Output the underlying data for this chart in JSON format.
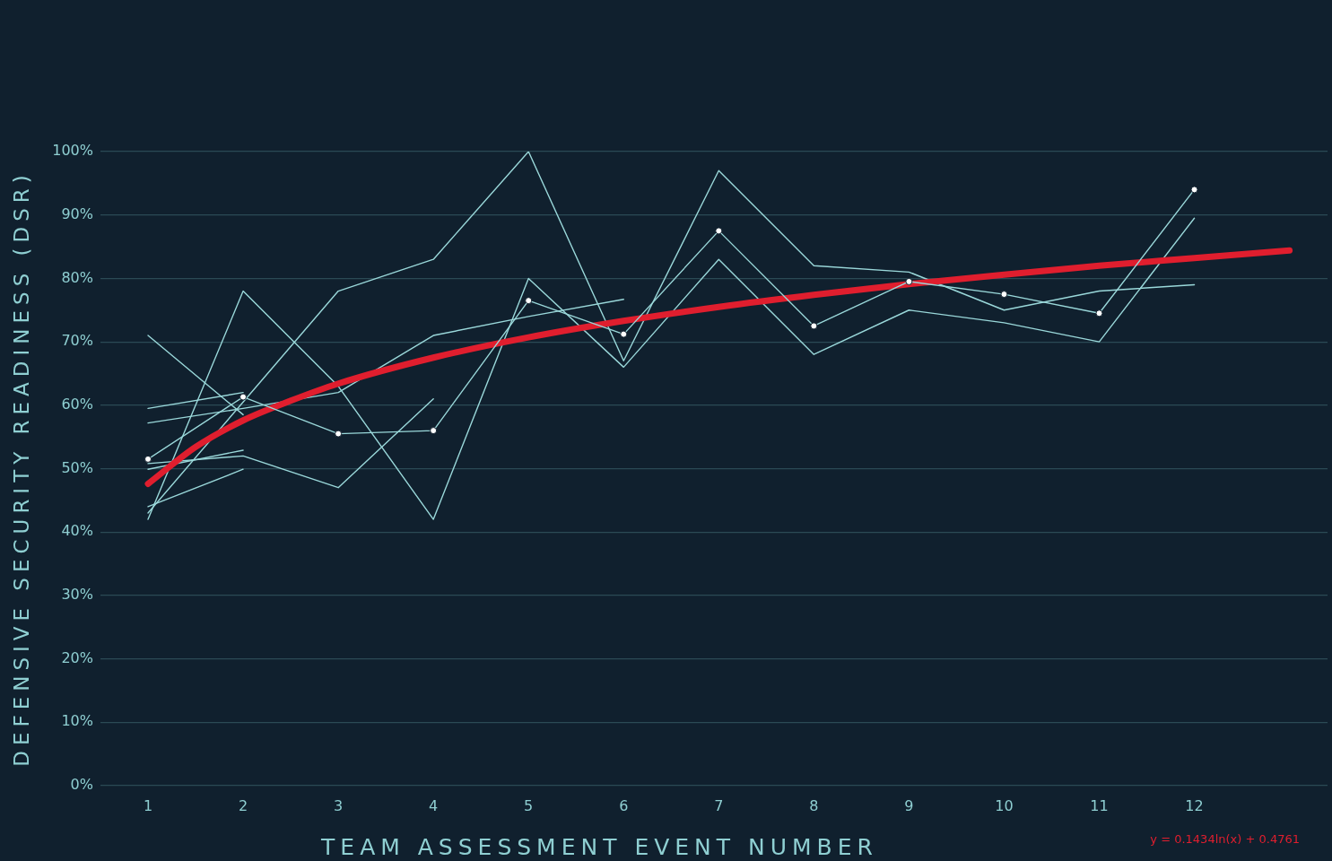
{
  "chart_data": {
    "type": "line",
    "xlabel": "TEAM ASSESSMENT EVENT NUMBER",
    "ylabel": "DEFENSIVE SECURITY READINESS (DSR)",
    "x": [
      1,
      2,
      3,
      4,
      5,
      6,
      7,
      8,
      9,
      10,
      11,
      12
    ],
    "xlim": [
      0.5,
      13.4
    ],
    "xticks": [
      1,
      2,
      3,
      4,
      5,
      6,
      7,
      8,
      9,
      10,
      11,
      12
    ],
    "ylim": [
      0,
      100
    ],
    "yticks": [
      {
        "value": 0,
        "label": "0%"
      },
      {
        "value": 10,
        "label": "10%"
      },
      {
        "value": 20,
        "label": "20%"
      },
      {
        "value": 30,
        "label": "30%"
      },
      {
        "value": 40,
        "label": "40%"
      },
      {
        "value": 50,
        "label": "50%"
      },
      {
        "value": 60,
        "label": "60%"
      },
      {
        "value": 70,
        "label": "70%"
      },
      {
        "value": 80,
        "label": "80%"
      },
      {
        "value": 90,
        "label": "90%"
      },
      {
        "value": 100,
        "label": "100%"
      }
    ],
    "grid": "y",
    "legend": false,
    "series": [
      {
        "color": "#9ad8da",
        "marker": "circle",
        "values": [
          51.5,
          61.3,
          55.5,
          56,
          76.5,
          71.2,
          87.5,
          72.5,
          79.5,
          77.5,
          74.5,
          94
        ]
      },
      {
        "color": "#9ad8da",
        "marker": "none",
        "values": [
          42,
          78,
          63,
          42,
          80,
          66,
          83,
          68,
          75,
          73,
          70,
          89.5
        ]
      },
      {
        "color": "#9ad8da",
        "marker": "none",
        "values": [
          43,
          60.5,
          78,
          83,
          100,
          67,
          97,
          82,
          81,
          75,
          78,
          79
        ]
      },
      {
        "color": "#9ad8da",
        "marker": "none",
        "values": [
          57.2,
          59.5,
          62,
          71,
          74,
          76.7,
          null,
          null,
          null,
          null,
          null,
          null
        ]
      },
      {
        "color": "#9ad8da",
        "marker": "none",
        "values": [
          50.8,
          52,
          47,
          61,
          null,
          null,
          null,
          null,
          null,
          null,
          null,
          null
        ]
      },
      {
        "color": "#9ad8da",
        "marker": "none",
        "values": [
          71,
          58.5,
          null,
          null,
          null,
          null,
          null,
          null,
          null,
          null,
          null,
          null
        ]
      },
      {
        "color": "#9ad8da",
        "marker": "none",
        "values": [
          59.5,
          62,
          null,
          null,
          null,
          null,
          null,
          null,
          null,
          null,
          null,
          null
        ]
      },
      {
        "color": "#9ad8da",
        "marker": "none",
        "values": [
          49.9,
          52.9,
          null,
          null,
          null,
          null,
          null,
          null,
          null,
          null,
          null,
          null
        ]
      },
      {
        "color": "#9ad8da",
        "marker": "none",
        "values": [
          44,
          49.9,
          null,
          null,
          null,
          null,
          null,
          null,
          null,
          null,
          null,
          null
        ]
      },
      {
        "color": "#e01e2e",
        "marker": "none",
        "x": [
          1,
          1.5,
          2,
          2.5,
          3,
          4,
          5,
          6,
          7,
          8,
          9,
          10,
          11,
          12,
          13
        ],
        "values": [
          47.6,
          53.4,
          57.6,
          60.7,
          63.4,
          67.5,
          70.7,
          73.3,
          75.5,
          77.4,
          79.1,
          80.6,
          82.0,
          83.2,
          84.4
        ]
      }
    ],
    "annotations": [
      "y = 0.1434ln(x) + 0.4761"
    ]
  }
}
